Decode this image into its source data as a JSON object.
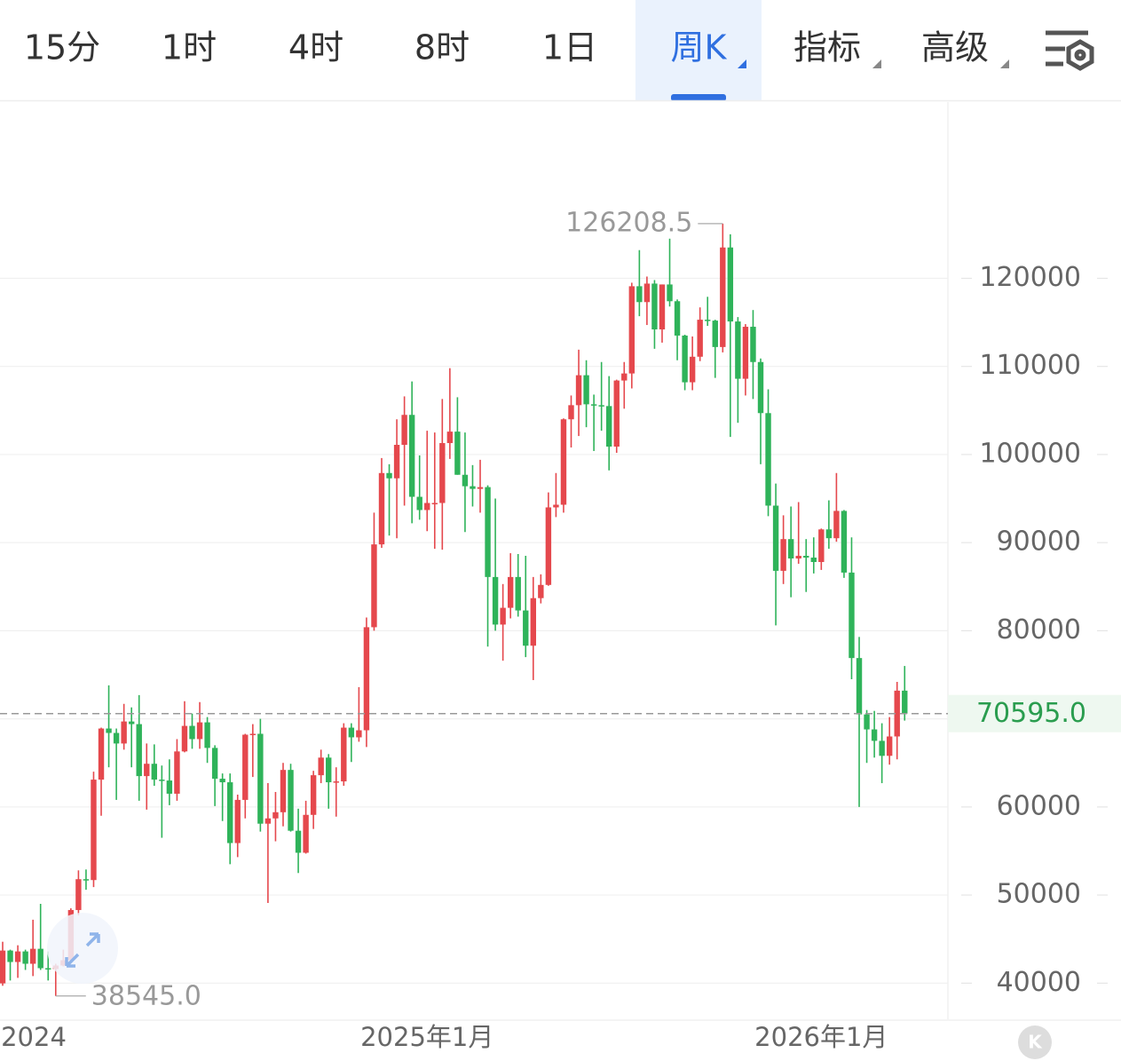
{
  "toolbar": {
    "tabs": [
      "15分",
      "1时",
      "4时",
      "8时",
      "1日",
      "周K",
      "指标",
      "高级"
    ],
    "active_tab": 5
  },
  "chart_data": {
    "type": "candlestick",
    "categories": [
      null,
      null,
      null,
      null,
      "2024",
      null,
      null,
      null,
      null,
      null,
      null,
      null,
      null,
      null,
      null,
      null,
      null,
      null,
      null,
      null,
      null,
      null,
      null,
      null,
      null,
      null,
      null,
      null,
      null,
      null,
      null,
      null,
      null,
      null,
      null,
      null,
      null,
      null,
      null,
      null,
      null,
      null,
      null,
      null,
      null,
      null,
      null,
      null,
      null,
      null,
      null,
      null,
      null,
      null,
      null,
      null,
      "2025年1月",
      null,
      null,
      null,
      null,
      null,
      null,
      null,
      null,
      null,
      null,
      null,
      null,
      null,
      null,
      null,
      null,
      null,
      null,
      null,
      null,
      null,
      null,
      null,
      null,
      null,
      null,
      null,
      null,
      null,
      null,
      null,
      null,
      null,
      null,
      null,
      null,
      null,
      null,
      null,
      null,
      null,
      null,
      null,
      null,
      null,
      null,
      null,
      null,
      null,
      null,
      null,
      "2026年1月",
      null,
      null,
      null,
      null,
      null,
      null,
      null,
      null,
      null,
      null,
      null
    ],
    "open": [
      39970,
      43700,
      42400,
      43600,
      42200,
      43900,
      41700,
      41600,
      42000,
      42600,
      48300,
      51800,
      51700,
      63100,
      68900,
      68400,
      67200,
      69700,
      69400,
      63500,
      64900,
      63100,
      63000,
      61500,
      66300,
      69200,
      67700,
      69600,
      66700,
      63200,
      62800,
      55900,
      60800,
      68200,
      68300,
      58100,
      58700,
      59400,
      64200,
      57300,
      54800,
      59100,
      63600,
      65600,
      62800,
      62900,
      69000,
      67900,
      68700,
      80400,
      89800,
      97900,
      97300,
      101100,
      104500,
      95200,
      93700,
      94500,
      94500,
      101300,
      102600,
      97700,
      96400,
      96100,
      96300,
      86100,
      80700,
      82600,
      86100,
      82300,
      78300,
      83700,
      85200,
      94000,
      94300,
      104000,
      105600,
      109000,
      105700,
      105600,
      105500,
      100900,
      108400,
      109200,
      119100,
      117300,
      119400,
      114200,
      119300,
      117400,
      113500,
      108200,
      111100,
      115300,
      115200,
      112200,
      123500,
      115100,
      108600,
      114500,
      110500,
      104700,
      94200,
      86800,
      90400,
      88200,
      88500,
      88300,
      87800,
      91500,
      90500,
      93600,
      86600,
      76900,
      70500,
      68800,
      67500,
      65800,
      68000,
      73200
    ],
    "high": [
      44700,
      43800,
      44300,
      43800,
      47200,
      49000,
      43600,
      42200,
      43800,
      48500,
      52800,
      52900,
      64000,
      69000,
      73800,
      68900,
      71700,
      71300,
      72700,
      67200,
      67100,
      64700,
      65400,
      67700,
      72000,
      70600,
      71900,
      70200,
      67000,
      63800,
      63800,
      61400,
      68300,
      69400,
      70000,
      62700,
      61700,
      65000,
      64900,
      59800,
      60700,
      64100,
      66500,
      66000,
      64500,
      69500,
      69500,
      73600,
      81500,
      93400,
      99600,
      98900,
      104000,
      106600,
      108300,
      99900,
      102700,
      102500,
      106300,
      109800,
      106500,
      102500,
      98800,
      99400,
      96500,
      95000,
      85300,
      88800,
      88700,
      88500,
      86100,
      86400,
      95700,
      97900,
      104100,
      106700,
      111900,
      110700,
      106800,
      110500,
      108900,
      108500,
      110500,
      119500,
      123200,
      120200,
      119800,
      119300,
      124500,
      117600,
      113600,
      113400,
      116700,
      117900,
      115300,
      126208.5,
      125000,
      115600,
      114800,
      116400,
      110900,
      107400,
      96700,
      93100,
      94100,
      94600,
      90400,
      90600,
      91600,
      94800,
      97900,
      93700,
      90600,
      79300,
      71000,
      70900,
      69500,
      70200,
      74200,
      76000
    ],
    "low": [
      39700,
      40300,
      40600,
      41500,
      40800,
      41500,
      40300,
      38545,
      41900,
      42300,
      47700,
      50600,
      50900,
      59000,
      64500,
      60800,
      66500,
      64500,
      60700,
      59700,
      62400,
      56500,
      60200,
      60700,
      66200,
      66600,
      66600,
      65000,
      60100,
      58400,
      53500,
      54300,
      58700,
      63400,
      57200,
      49100,
      56100,
      57800,
      57200,
      52500,
      54700,
      57500,
      62700,
      59800,
      58900,
      62400,
      65100,
      67400,
      66800,
      80000,
      89400,
      90800,
      90500,
      94200,
      92200,
      92600,
      91300,
      89300,
      89200,
      99500,
      97700,
      91200,
      94100,
      93400,
      78200,
      80000,
      76600,
      81400,
      81600,
      77000,
      74400,
      83100,
      85100,
      92900,
      93400,
      100800,
      102100,
      103100,
      100400,
      102700,
      98200,
      100200,
      105200,
      107500,
      115700,
      114700,
      112000,
      112700,
      116800,
      110700,
      107300,
      107300,
      110600,
      114600,
      108700,
      111600,
      102000,
      103600,
      106700,
      106300,
      98900,
      93000,
      80600,
      85300,
      83800,
      87600,
      84400,
      86500,
      86900,
      89300,
      90100,
      86000,
      74500,
      60000,
      65000,
      65600,
      62700,
      64800,
      65400,
      69800
    ],
    "close": [
      43700,
      42400,
      43600,
      42200,
      43900,
      41700,
      41600,
      42000,
      42600,
      48300,
      51800,
      51700,
      63100,
      68900,
      68400,
      67200,
      69700,
      69400,
      63500,
      64900,
      63100,
      63000,
      61500,
      66300,
      69200,
      67700,
      69600,
      66700,
      63200,
      62800,
      55900,
      60800,
      68200,
      68300,
      58100,
      58700,
      59400,
      64200,
      57300,
      54800,
      59100,
      63600,
      65600,
      62800,
      62900,
      69000,
      67900,
      68700,
      80400,
      89800,
      97900,
      97300,
      101100,
      104500,
      95200,
      93700,
      94500,
      94500,
      101300,
      102600,
      97700,
      96400,
      96100,
      96300,
      86100,
      80700,
      82600,
      86100,
      82300,
      78300,
      83700,
      85200,
      94000,
      94300,
      104000,
      105600,
      109000,
      105700,
      105600,
      105500,
      100900,
      108400,
      109200,
      119100,
      117300,
      119400,
      114200,
      119300,
      117400,
      113500,
      108200,
      111100,
      115300,
      115200,
      112200,
      123500,
      115100,
      108600,
      114500,
      110500,
      104700,
      94200,
      86800,
      90400,
      88200,
      88500,
      88300,
      87800,
      91500,
      90500,
      93600,
      86600,
      76900,
      70500,
      68800,
      67500,
      65800,
      68000,
      73200,
      70595
    ],
    "up_color": "#e5484d",
    "down_color": "#2fb35a",
    "ylim": [
      35900,
      140000
    ],
    "yticks": [
      40000,
      50000,
      60000,
      70000,
      80000,
      90000,
      100000,
      110000,
      120000
    ],
    "grid": true,
    "max_price": 126208.5,
    "min_price": {
      "value": 38545,
      "label": "38545.0"
    },
    "last_price": {
      "value": 70595,
      "label": "70595.0"
    }
  }
}
